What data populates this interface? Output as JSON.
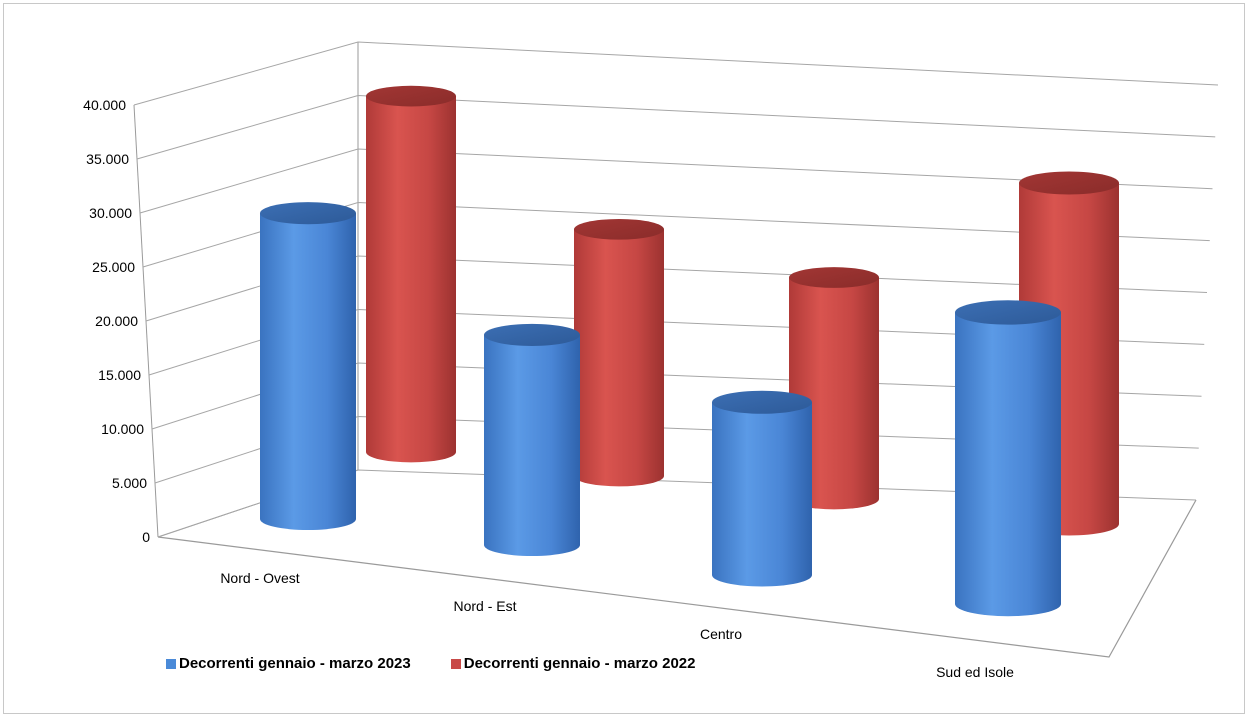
{
  "chart_data": {
    "type": "bar",
    "style": "3d-cylinder",
    "categories": [
      "Nord - Ovest",
      "Nord - Est",
      "Centro",
      "Sud ed Isole"
    ],
    "series": [
      {
        "name": "Decorrenti gennaio - marzo 2023",
        "color": "#4a8ad8",
        "values": [
          27800,
          19100,
          15700,
          25800
        ]
      },
      {
        "name": "Decorrenti gennaio - marzo 2022",
        "color": "#c84a48",
        "values": [
          36500,
          25300,
          22600,
          34100
        ]
      }
    ],
    "ylim": [
      0,
      40000
    ],
    "yticks": [
      "0",
      "5.000",
      "10.000",
      "15.000",
      "20.000",
      "25.000",
      "30.000",
      "35.000",
      "40.000"
    ],
    "grid": true,
    "legend_position": "bottom-left"
  }
}
